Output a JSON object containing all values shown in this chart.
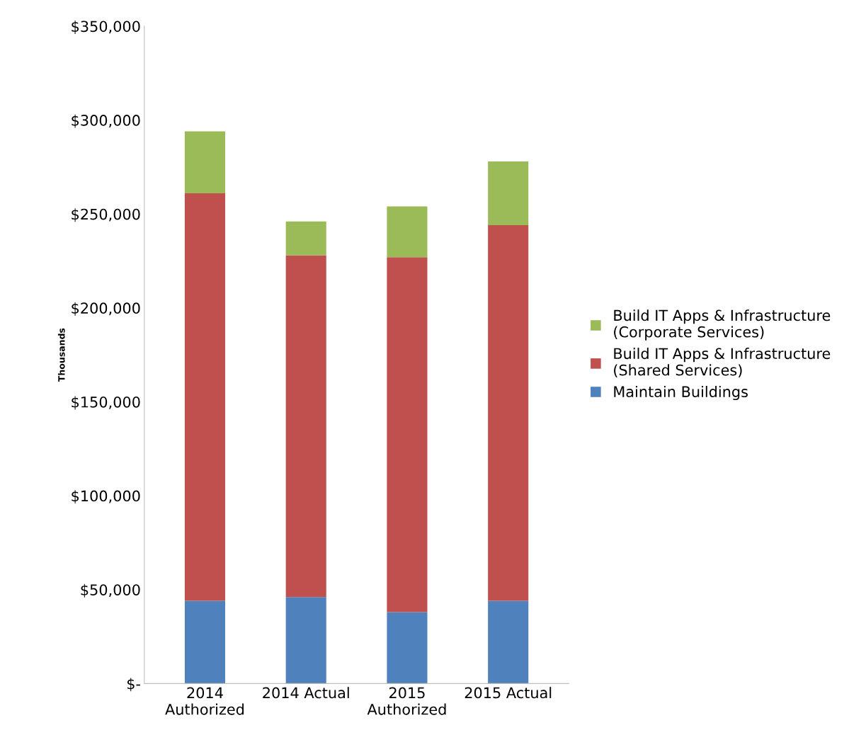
{
  "chart_data": {
    "type": "bar",
    "stacked": true,
    "ylabel": "Thousands",
    "categories": [
      "2014\nAuthorized",
      "2014 Actual",
      "2015\nAuthorized",
      "2015 Actual"
    ],
    "series": [
      {
        "name": "Maintain Buildings",
        "color": "#4f81bd",
        "values": [
          44000,
          46000,
          38000,
          44000
        ]
      },
      {
        "name": "Build IT Apps & Infrastructure\n(Shared Services)",
        "color": "#c0504d",
        "values": [
          217000,
          182000,
          189000,
          200000
        ]
      },
      {
        "name": "Build IT Apps & Infrastructure\n(Corporate Services)",
        "color": "#9bbb59",
        "values": [
          33000,
          18000,
          27000,
          34000
        ]
      }
    ],
    "ylim": [
      0,
      350000
    ],
    "yticks": [
      {
        "value": 0,
        "label": "$-"
      },
      {
        "value": 50000,
        "label": "$50,000"
      },
      {
        "value": 100000,
        "label": "$100,000"
      },
      {
        "value": 150000,
        "label": "$150,000"
      },
      {
        "value": 200000,
        "label": "$200,000"
      },
      {
        "value": 250000,
        "label": "$250,000"
      },
      {
        "value": 300000,
        "label": "$300,000"
      },
      {
        "value": 350000,
        "label": "$350,000"
      }
    ],
    "grid": false,
    "legend": "right"
  }
}
